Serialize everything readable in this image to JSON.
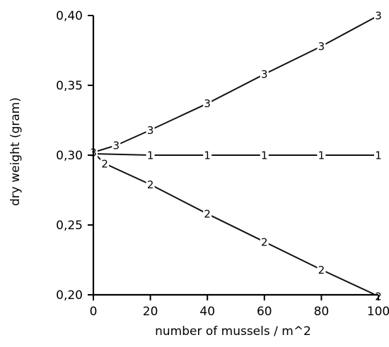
{
  "chart_data": {
    "type": "line",
    "title": "",
    "xlabel": "number of mussels / m^2",
    "ylabel": "dry weight (gram)",
    "xlim": [
      0,
      100
    ],
    "ylim": [
      0.2,
      0.4
    ],
    "grid": false,
    "legend": "none",
    "x_ticks": [
      0,
      20,
      40,
      60,
      80,
      100
    ],
    "x_tick_labels": [
      "0",
      "20",
      "40",
      "60",
      "80",
      "100"
    ],
    "y_ticks": [
      0.2,
      0.25,
      0.3,
      0.35,
      0.4
    ],
    "y_tick_labels": [
      "0,20",
      "0,25",
      "0,30",
      "0,35",
      "0,40"
    ],
    "series": [
      {
        "marker": "1",
        "x": [
          0,
          20,
          40,
          60,
          80,
          100
        ],
        "values": [
          0.301,
          0.3,
          0.3,
          0.3,
          0.3,
          0.3
        ]
      },
      {
        "marker": "2",
        "x": [
          0,
          4,
          20,
          40,
          60,
          80,
          100
        ],
        "values": [
          0.302,
          0.294,
          0.279,
          0.258,
          0.238,
          0.218,
          0.199
        ]
      },
      {
        "marker": "3",
        "x": [
          0,
          8,
          20,
          40,
          60,
          80,
          100
        ],
        "values": [
          0.302,
          0.307,
          0.318,
          0.337,
          0.358,
          0.378,
          0.4
        ]
      }
    ]
  }
}
